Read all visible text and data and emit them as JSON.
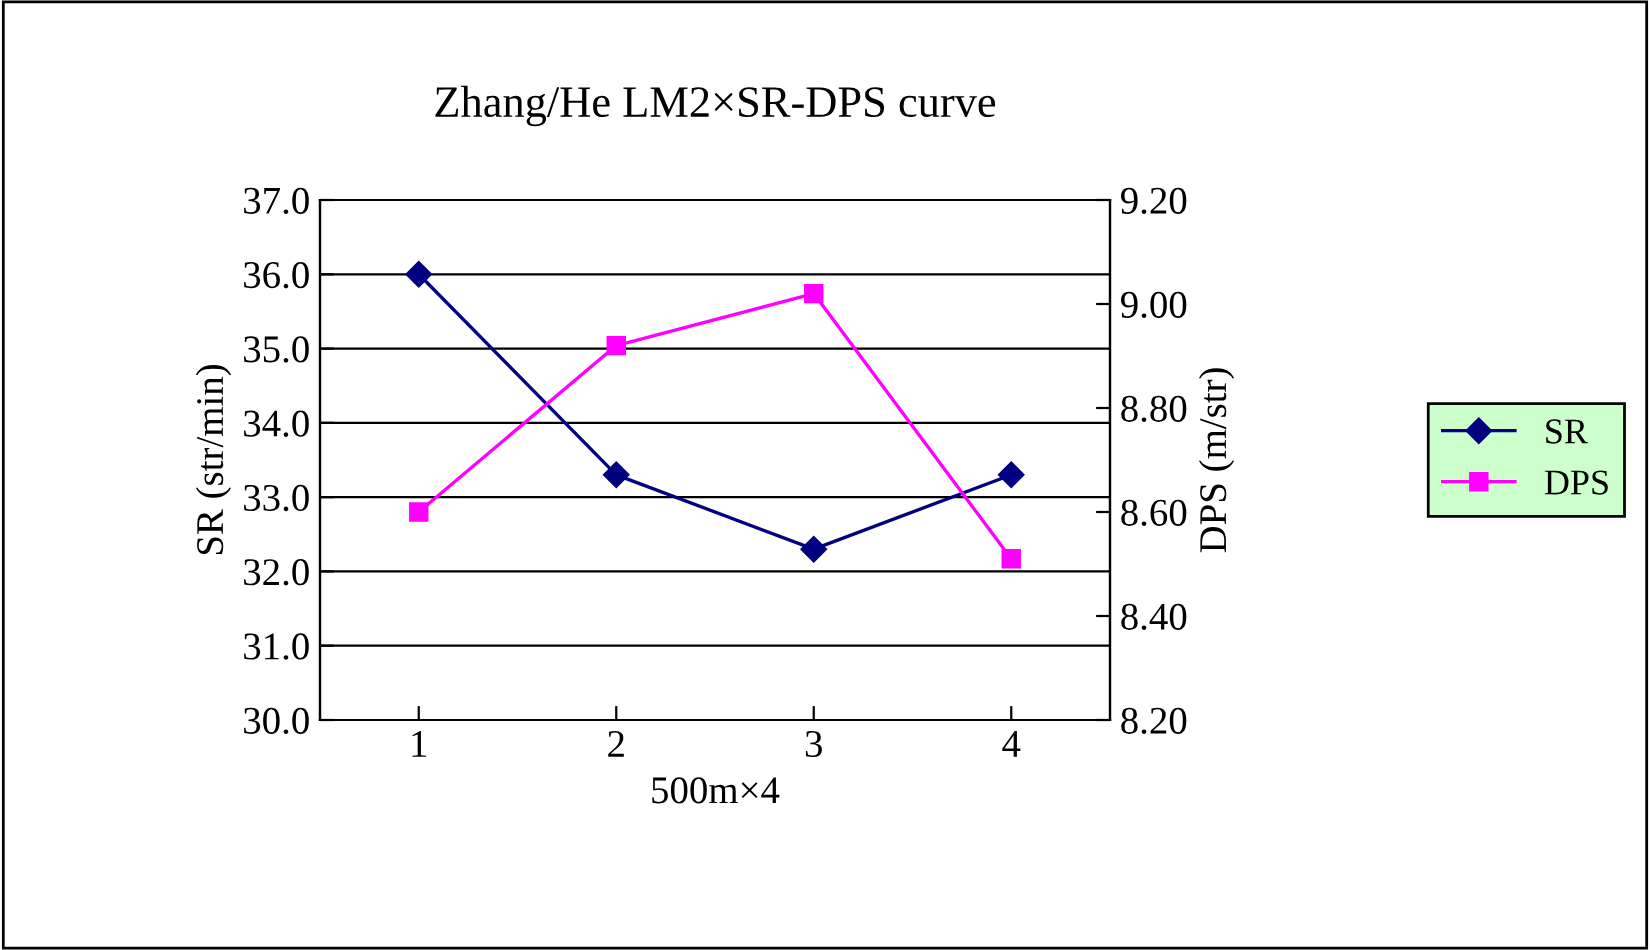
{
  "chart_data": {
    "type": "line",
    "title": "Zhang/He LM2×SR-DPS curve",
    "xlabel": "500m×4",
    "ylabel": "SR (str/min)",
    "y2label": "DPS (m/str)",
    "categories": [
      "1",
      "2",
      "3",
      "4"
    ],
    "series": [
      {
        "name": "SR",
        "color": "#000080",
        "marker": "diamond",
        "values": [
          36.0,
          33.3,
          32.3,
          33.3
        ]
      },
      {
        "name": "DPS",
        "color": "#ff00ff",
        "marker": "square",
        "axis": "y2",
        "values": [
          8.6,
          8.92,
          9.02,
          8.51
        ]
      }
    ],
    "ylim": [
      30,
      37
    ],
    "yticks": [
      {
        "value": 30,
        "label": "30.0"
      },
      {
        "value": 31,
        "label": "31.0"
      },
      {
        "value": 32,
        "label": "32.0"
      },
      {
        "value": 33,
        "label": "33.0"
      },
      {
        "value": 34,
        "label": "34.0"
      },
      {
        "value": 35,
        "label": "35.0"
      },
      {
        "value": 36,
        "label": "36.0"
      },
      {
        "value": 37,
        "label": "37.0"
      }
    ],
    "y2lim": [
      8.2,
      9.2
    ],
    "y2ticks": [
      {
        "value": 8.2,
        "label": "8.20"
      },
      {
        "value": 8.4,
        "label": "8.40"
      },
      {
        "value": 8.6,
        "label": "8.60"
      },
      {
        "value": 8.8,
        "label": "8.80"
      },
      {
        "value": 9.0,
        "label": "9.00"
      },
      {
        "value": 9.2,
        "label": "9.20"
      }
    ],
    "grid": "y",
    "legend": "right"
  }
}
